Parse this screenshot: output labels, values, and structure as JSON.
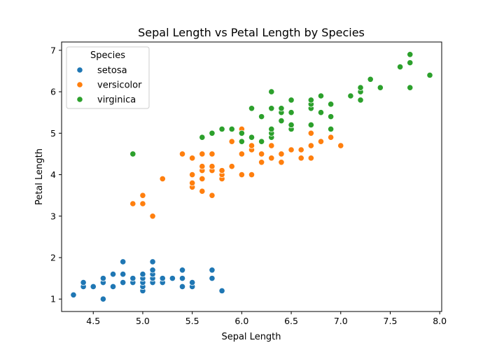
{
  "chart_data": {
    "type": "scatter",
    "title": "Sepal Length vs Petal Length by Species",
    "xlabel": "Sepal Length",
    "ylabel": "Petal Length",
    "xlim": [
      4.18,
      8.02
    ],
    "ylim": [
      0.7,
      7.2
    ],
    "xticks": [
      4.5,
      5.0,
      5.5,
      6.0,
      6.5,
      7.0,
      7.5,
      8.0
    ],
    "xtick_labels": [
      "4.5",
      "5.0",
      "5.5",
      "6.0",
      "6.5",
      "7.0",
      "7.5",
      "8.0"
    ],
    "yticks": [
      1,
      2,
      3,
      4,
      5,
      6,
      7
    ],
    "ytick_labels": [
      "1",
      "2",
      "3",
      "4",
      "5",
      "6",
      "7"
    ],
    "grid": false,
    "legend": {
      "title": "Species",
      "placement": "top-left",
      "entries": [
        "setosa",
        "versicolor",
        "virginica"
      ]
    },
    "series": [
      {
        "name": "setosa",
        "color": "#1f77b4",
        "points": [
          [
            4.3,
            1.1
          ],
          [
            4.4,
            1.3
          ],
          [
            4.4,
            1.4
          ],
          [
            4.5,
            1.3
          ],
          [
            4.6,
            1.0
          ],
          [
            4.6,
            1.4
          ],
          [
            4.6,
            1.5
          ],
          [
            4.7,
            1.3
          ],
          [
            4.7,
            1.6
          ],
          [
            4.8,
            1.4
          ],
          [
            4.8,
            1.6
          ],
          [
            4.8,
            1.9
          ],
          [
            4.9,
            1.4
          ],
          [
            4.9,
            1.5
          ],
          [
            5.0,
            1.2
          ],
          [
            5.0,
            1.3
          ],
          [
            5.0,
            1.4
          ],
          [
            5.0,
            1.5
          ],
          [
            5.0,
            1.6
          ],
          [
            5.1,
            1.4
          ],
          [
            5.1,
            1.5
          ],
          [
            5.1,
            1.6
          ],
          [
            5.1,
            1.7
          ],
          [
            5.1,
            1.9
          ],
          [
            5.2,
            1.4
          ],
          [
            5.2,
            1.5
          ],
          [
            5.3,
            1.5
          ],
          [
            5.4,
            1.3
          ],
          [
            5.4,
            1.5
          ],
          [
            5.4,
            1.7
          ],
          [
            5.5,
            1.3
          ],
          [
            5.5,
            1.4
          ],
          [
            5.7,
            1.5
          ],
          [
            5.7,
            1.7
          ],
          [
            5.8,
            1.2
          ]
        ]
      },
      {
        "name": "versicolor",
        "color": "#ff7f0e",
        "points": [
          [
            4.9,
            3.3
          ],
          [
            5.0,
            3.3
          ],
          [
            5.0,
            3.5
          ],
          [
            5.1,
            3.0
          ],
          [
            5.2,
            3.9
          ],
          [
            5.4,
            4.5
          ],
          [
            5.5,
            3.7
          ],
          [
            5.5,
            3.8
          ],
          [
            5.5,
            4.0
          ],
          [
            5.5,
            4.4
          ],
          [
            5.6,
            3.6
          ],
          [
            5.6,
            3.9
          ],
          [
            5.6,
            4.1
          ],
          [
            5.6,
            4.2
          ],
          [
            5.6,
            4.5
          ],
          [
            5.7,
            3.5
          ],
          [
            5.7,
            4.1
          ],
          [
            5.7,
            4.2
          ],
          [
            5.7,
            4.5
          ],
          [
            5.8,
            3.9
          ],
          [
            5.8,
            4.0
          ],
          [
            5.8,
            4.1
          ],
          [
            5.9,
            4.2
          ],
          [
            5.9,
            4.8
          ],
          [
            6.0,
            4.0
          ],
          [
            6.0,
            4.5
          ],
          [
            6.0,
            5.1
          ],
          [
            6.1,
            4.0
          ],
          [
            6.1,
            4.6
          ],
          [
            6.1,
            4.7
          ],
          [
            6.2,
            4.3
          ],
          [
            6.2,
            4.5
          ],
          [
            6.3,
            4.4
          ],
          [
            6.3,
            4.7
          ],
          [
            6.3,
            4.9
          ],
          [
            6.4,
            4.3
          ],
          [
            6.4,
            4.5
          ],
          [
            6.5,
            4.6
          ],
          [
            6.6,
            4.4
          ],
          [
            6.6,
            4.6
          ],
          [
            6.7,
            4.4
          ],
          [
            6.7,
            4.7
          ],
          [
            6.7,
            5.0
          ],
          [
            6.8,
            4.8
          ],
          [
            6.9,
            4.9
          ],
          [
            7.0,
            4.7
          ]
        ]
      },
      {
        "name": "virginica",
        "color": "#2ca02c",
        "points": [
          [
            4.9,
            4.5
          ],
          [
            5.6,
            4.9
          ],
          [
            5.7,
            5.0
          ],
          [
            5.8,
            5.1
          ],
          [
            5.9,
            5.1
          ],
          [
            6.0,
            4.8
          ],
          [
            6.0,
            5.0
          ],
          [
            6.1,
            4.9
          ],
          [
            6.1,
            5.6
          ],
          [
            6.2,
            4.8
          ],
          [
            6.2,
            5.4
          ],
          [
            6.3,
            4.9
          ],
          [
            6.3,
            5.0
          ],
          [
            6.3,
            5.1
          ],
          [
            6.3,
            5.6
          ],
          [
            6.3,
            6.0
          ],
          [
            6.4,
            5.3
          ],
          [
            6.4,
            5.5
          ],
          [
            6.4,
            5.6
          ],
          [
            6.5,
            5.1
          ],
          [
            6.5,
            5.2
          ],
          [
            6.5,
            5.5
          ],
          [
            6.5,
            5.8
          ],
          [
            6.7,
            5.2
          ],
          [
            6.7,
            5.6
          ],
          [
            6.7,
            5.7
          ],
          [
            6.7,
            5.8
          ],
          [
            6.8,
            5.5
          ],
          [
            6.8,
            5.9
          ],
          [
            6.9,
            5.1
          ],
          [
            6.9,
            5.4
          ],
          [
            6.9,
            5.7
          ],
          [
            7.1,
            5.9
          ],
          [
            7.2,
            5.8
          ],
          [
            7.2,
            6.0
          ],
          [
            7.2,
            6.1
          ],
          [
            7.3,
            6.3
          ],
          [
            7.4,
            6.1
          ],
          [
            7.6,
            6.6
          ],
          [
            7.7,
            6.1
          ],
          [
            7.7,
            6.7
          ],
          [
            7.7,
            6.9
          ],
          [
            7.9,
            6.4
          ]
        ]
      }
    ]
  }
}
